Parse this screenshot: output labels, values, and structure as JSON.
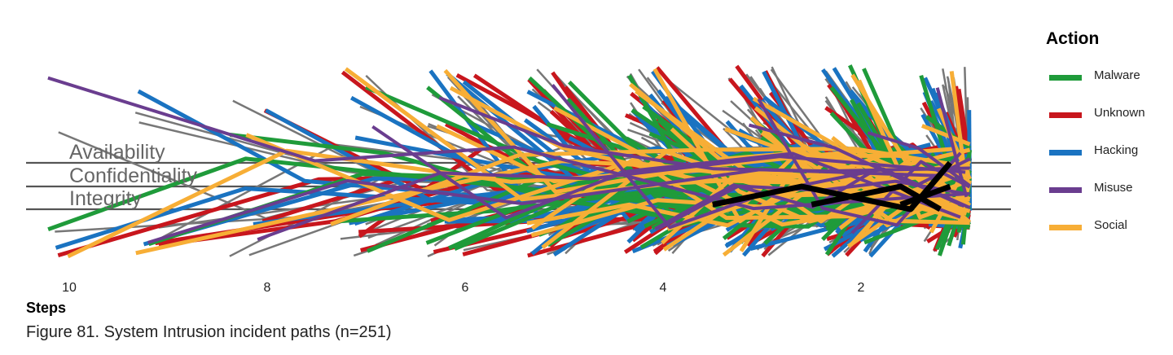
{
  "chart_data": {
    "type": "line",
    "title": "",
    "xlabel": "Steps",
    "ylabel": "",
    "x_ticks": [
      10,
      8,
      6,
      4,
      2
    ],
    "x_reversed": true,
    "xlim": [
      10.5,
      0.5
    ],
    "y_categories": [
      "Availability",
      "Confidentiality",
      "Integrity"
    ],
    "legend_title": "Action",
    "legend_position": "right",
    "series": [
      {
        "name": "Malware",
        "color": "#1f9b3a"
      },
      {
        "name": "Unknown",
        "color": "#c8161d"
      },
      {
        "name": "Hacking",
        "color": "#1a73c1"
      },
      {
        "name": "Misuse",
        "color": "#6a3d8f"
      },
      {
        "name": "Social",
        "color": "#f7ae36"
      }
    ],
    "other_paths_color": "#777777",
    "highlight_color": "#000000",
    "highlight_paths": [
      [
        [
          3.5,
          "Integrity",
          -0.2
        ],
        [
          2.6,
          "Confidentiality",
          0
        ],
        [
          1.5,
          "Integrity",
          0
        ],
        [
          1.1,
          "Availability",
          0
        ]
      ],
      [
        [
          2.5,
          "Integrity",
          -0.2
        ],
        [
          1.6,
          "Confidentiality",
          0
        ],
        [
          1.2,
          "Integrity",
          0
        ]
      ],
      [
        [
          1.6,
          "Integrity",
          -0.2
        ],
        [
          1.1,
          "Confidentiality",
          0
        ]
      ]
    ]
  },
  "caption": "Figure 81. System Intrusion incident paths (n=251)"
}
